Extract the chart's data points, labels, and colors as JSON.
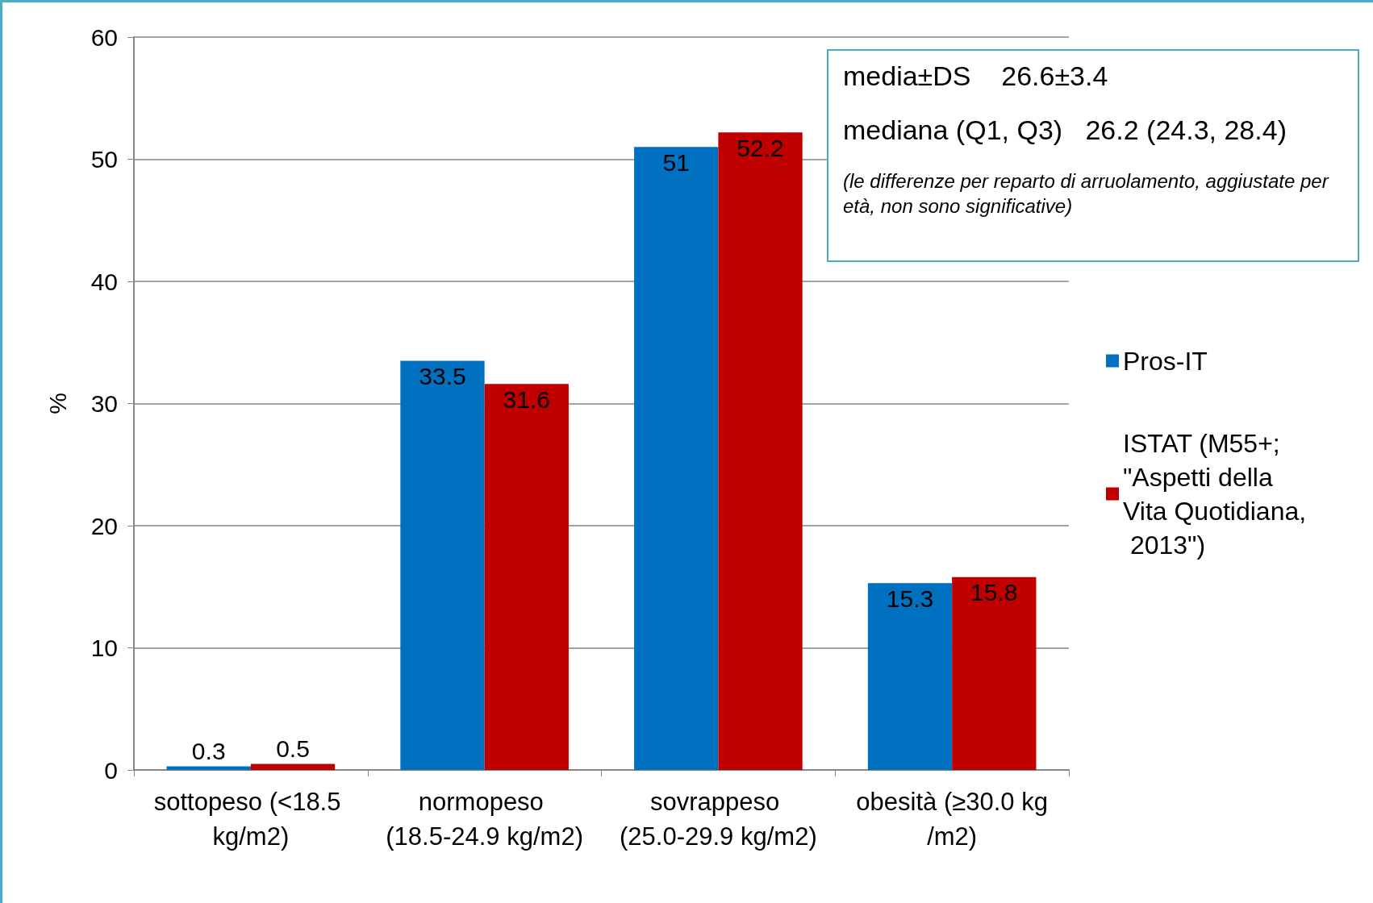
{
  "chart_data": {
    "type": "bar",
    "ylabel": "%",
    "categories": [
      "sottopeso (<18.5 kg/m2)",
      "normopeso (18.5-24.9 kg/m2)",
      "sovrappeso (25.0-29.9 kg/m2)",
      "obesità (≥30.0 kg/m2)"
    ],
    "series": [
      {
        "name": "Pros-IT",
        "color": "#0070c0",
        "values": [
          0.3,
          33.5,
          51,
          15.3
        ]
      },
      {
        "name": "ISTAT (M55+; \"Aspetti della Vita Quotidiana, 2013\")",
        "color": "#c00000",
        "values": [
          0.5,
          31.6,
          52.2,
          15.8
        ]
      }
    ],
    "ylim": [
      0,
      60
    ],
    "yticks": [
      0,
      10,
      20,
      30,
      40,
      50,
      60
    ],
    "grid": "y",
    "legend": "right",
    "data_labels": true,
    "annotations": [
      "media±DS    26.6±3.4",
      "mediana (Q1, Q3)   26.2 (24.3, 28.4)",
      "(le differenze per reparto di arruolamento, aggiustate per età, non sono significative)"
    ]
  }
}
